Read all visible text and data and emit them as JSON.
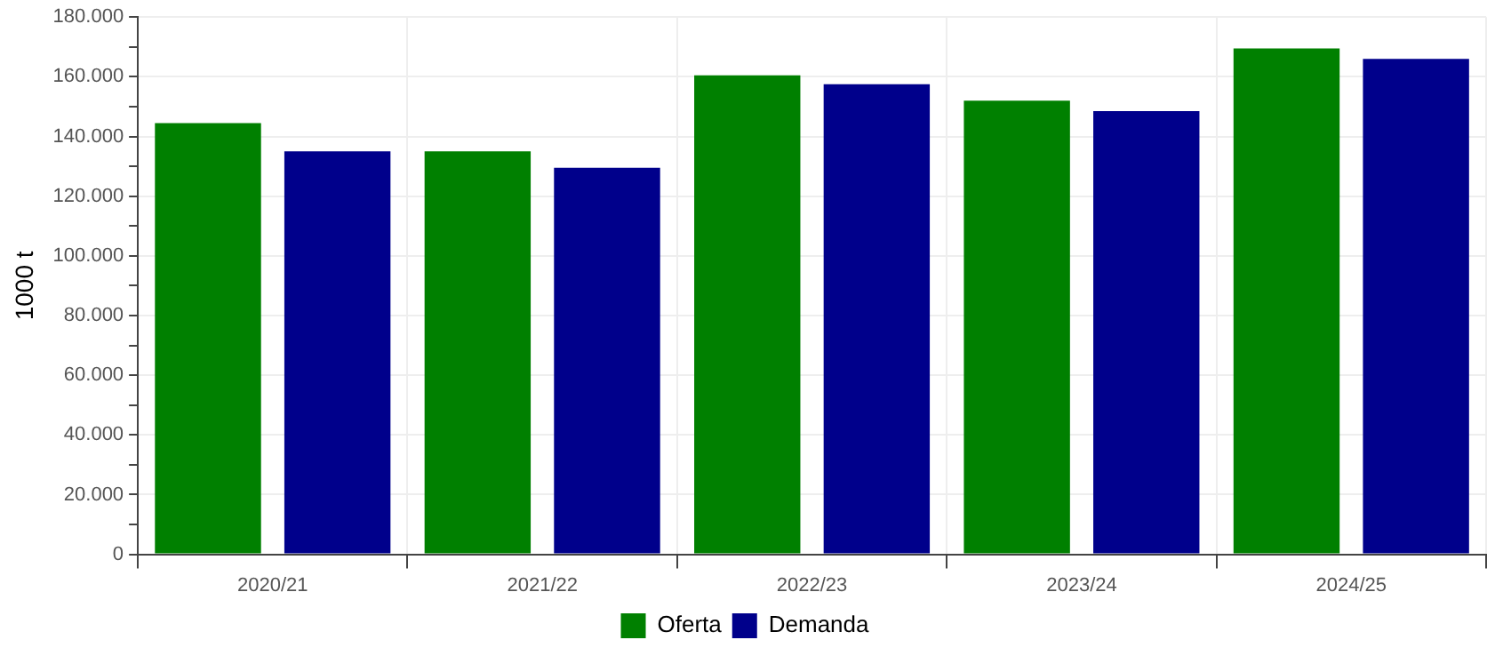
{
  "chart_data": {
    "type": "bar",
    "ylabel": "1000 t",
    "categories": [
      "2020/21",
      "2021/22",
      "2022/23",
      "2023/24",
      "2024/25"
    ],
    "series": [
      {
        "name": "Oferta",
        "color": "#008000",
        "values": [
          144500,
          135000,
          160500,
          152000,
          169500
        ]
      },
      {
        "name": "Demanda",
        "color": "#00008b",
        "values": [
          135000,
          129500,
          157500,
          148500,
          166000
        ]
      }
    ],
    "ylim": [
      0,
      180000
    ],
    "yticks": [
      0,
      {
        "value": 10000,
        "label": null
      },
      {
        "value": 20000,
        "label": "20.000"
      },
      {
        "value": 30000,
        "label": null
      },
      {
        "value": 40000,
        "label": "40.000"
      },
      {
        "value": 50000,
        "label": null
      },
      {
        "value": 60000,
        "label": "60.000"
      },
      {
        "value": 70000,
        "label": null
      },
      {
        "value": 80000,
        "label": "80.000"
      },
      {
        "value": 90000,
        "label": null
      },
      {
        "value": 100000,
        "label": "100.000"
      },
      {
        "value": 110000,
        "label": null
      },
      {
        "value": 120000,
        "label": "120.000"
      },
      {
        "value": 130000,
        "label": null
      },
      {
        "value": 140000,
        "label": "140.000"
      },
      {
        "value": 150000,
        "label": null
      },
      {
        "value": 160000,
        "label": "160.000"
      },
      {
        "value": 170000,
        "label": null
      },
      {
        "value": 180000,
        "label": "180.000"
      }
    ],
    "grid": true,
    "legend": "bottom"
  }
}
